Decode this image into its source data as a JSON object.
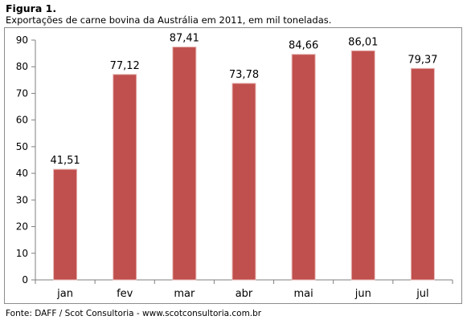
{
  "header": {
    "figure_label": "Figura 1.",
    "subtitle": "Exportações  de  carne  bovina  da  Austrália  em 2011, em mil toneladas."
  },
  "footer": {
    "source": "Fonte: DAFF / Scot Consultoria - www.scotconsultoria.com.br"
  },
  "colors": {
    "bar_fill": "#c0504d",
    "bar_edge": "#e8b8b6",
    "axis": "#7f7f7f"
  },
  "chart_data": {
    "type": "bar",
    "categories": [
      "jan",
      "fev",
      "mar",
      "abr",
      "mai",
      "jun",
      "jul"
    ],
    "values": [
      41.51,
      77.12,
      87.41,
      73.78,
      84.66,
      86.01,
      79.37
    ],
    "data_labels": [
      "41,51",
      "77,12",
      "87,41",
      "73,78",
      "84,66",
      "86,01",
      "79,37"
    ],
    "ylim": [
      0,
      90
    ],
    "yticks": [
      0,
      10,
      20,
      30,
      40,
      50,
      60,
      70,
      80,
      90
    ],
    "grid": false,
    "legend": "none"
  }
}
